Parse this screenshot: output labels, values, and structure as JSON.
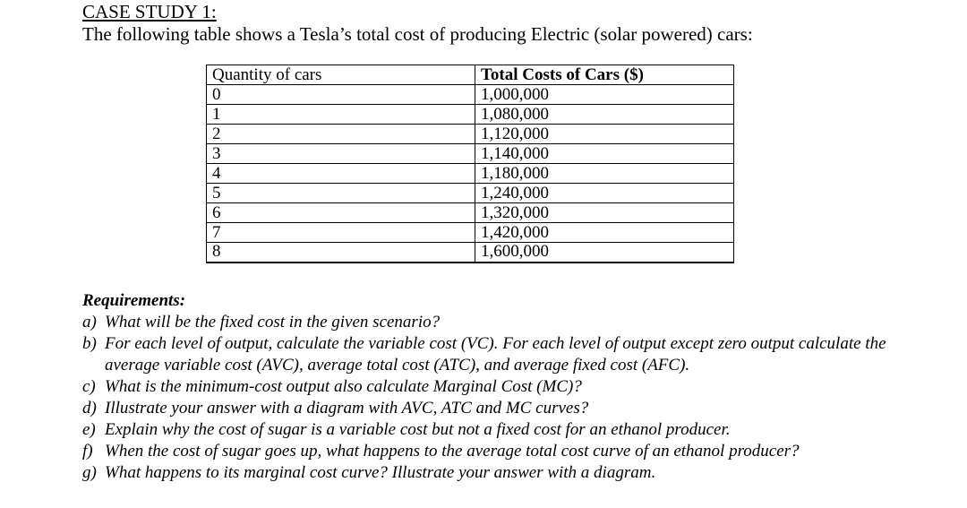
{
  "heading": "CASE STUDY 1:",
  "intro": "The following table shows a Tesla’s total cost of producing Electric (solar powered) cars:",
  "table": {
    "headers": [
      "Quantity of cars",
      "Total Costs of Cars ($)"
    ],
    "rows": [
      [
        "0",
        "1,000,000"
      ],
      [
        "1",
        "1,080,000"
      ],
      [
        "2",
        "1,120,000"
      ],
      [
        "3",
        "1,140,000"
      ],
      [
        "4",
        "1,180,000"
      ],
      [
        "5",
        "1,240,000"
      ],
      [
        "6",
        "1,320,000"
      ],
      [
        "7",
        "1,420,000"
      ],
      [
        "8",
        "1,600,000"
      ]
    ]
  },
  "requirements": {
    "title": "Requirements:",
    "items": [
      {
        "letter": "a)",
        "text": "What will be the fixed cost in the given scenario?"
      },
      {
        "letter": "b)",
        "text": "For each level of output, calculate the variable cost (VC). For each level of output except zero output calculate the average variable cost (AVC), average total cost (ATC), and average fixed cost (AFC)."
      },
      {
        "letter": "c)",
        "text": "What is the minimum-cost output also calculate Marginal Cost (MC)?"
      },
      {
        "letter": "d)",
        "text": "Illustrate your answer with a diagram with AVC, ATC and MC curves?"
      },
      {
        "letter": "e)",
        "text": "Explain why the cost of sugar is a variable cost but not a fixed cost for an ethanol producer."
      },
      {
        "letter": "f)",
        "text": "When the cost of sugar goes up, what happens to the average total cost curve of an ethanol producer?"
      },
      {
        "letter": "g)",
        "text": "What happens to its marginal cost curve? Illustrate your answer with a diagram."
      }
    ]
  }
}
